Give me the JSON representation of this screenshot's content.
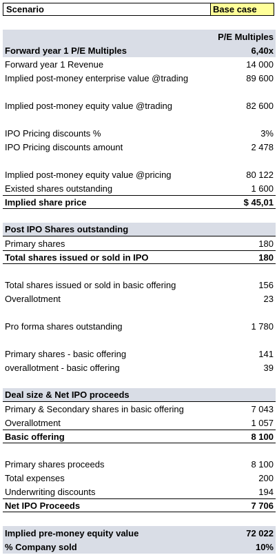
{
  "scenario": {
    "label": "Scenario",
    "value": "Base case"
  },
  "pe": {
    "column_header": "P/E Multiples",
    "title": {
      "label": "Forward year 1 P/E Multiples",
      "value": "6,40x"
    },
    "rows": [
      {
        "label": "Forward year 1 Revenue",
        "value": "14 000"
      },
      {
        "label": "Implied post-money enterprise value @trading",
        "value": "89 600"
      },
      {
        "label": "Implied post-money equity value @trading",
        "value": "82 600"
      },
      {
        "label": "IPO Pricing discounts %",
        "value": "3%"
      },
      {
        "label": "IPO Pricing discounts amount",
        "value": "2 478"
      },
      {
        "label": "Implied post-money equity value @pricing",
        "value": "80 122"
      },
      {
        "label": "Existed shares outstanding",
        "value": "1 600"
      }
    ],
    "share_price": {
      "label": "Implied share price",
      "value": "$ 45,01"
    }
  },
  "shares": {
    "title": "Post IPO Shares outstanding",
    "primary": {
      "label": "Primary shares",
      "value": "180"
    },
    "total_ipo": {
      "label": "Total shares issued or sold in IPO",
      "value": "180"
    },
    "basic": {
      "label": "Total shares issued or sold in basic offering",
      "value": "156"
    },
    "overallot": {
      "label": "Overallotment",
      "value": "23"
    },
    "proforma": {
      "label": "Pro forma shares outstanding",
      "value": "1 780"
    },
    "primary_basic": {
      "label": "Primary shares  - basic offering",
      "value": "141"
    },
    "overallot_basic": {
      "label": "overallotment  - basic offering",
      "value": "39"
    }
  },
  "deal": {
    "title": "Deal size & Net IPO proceeds",
    "prim_sec": {
      "label": "Primary & Secondary shares in basic offering",
      "value": "7 043"
    },
    "overallot": {
      "label": "Overallotment",
      "value": "1 057"
    },
    "basic": {
      "label": "Basic offering",
      "value": "8 100"
    },
    "prim_proceeds": {
      "label": "Primary shares proceeds",
      "value": "8 100"
    },
    "expenses": {
      "label": "Total expenses",
      "value": "200"
    },
    "underwriting": {
      "label": "Underwriting discounts",
      "value": "194"
    },
    "net": {
      "label": "Net IPO Proceeds",
      "value": "7 706"
    }
  },
  "summary": {
    "premoney": {
      "label": "Implied pre-money equity value",
      "value": "72 022"
    },
    "sold": {
      "label": "% Company sold",
      "value": "10%"
    }
  }
}
